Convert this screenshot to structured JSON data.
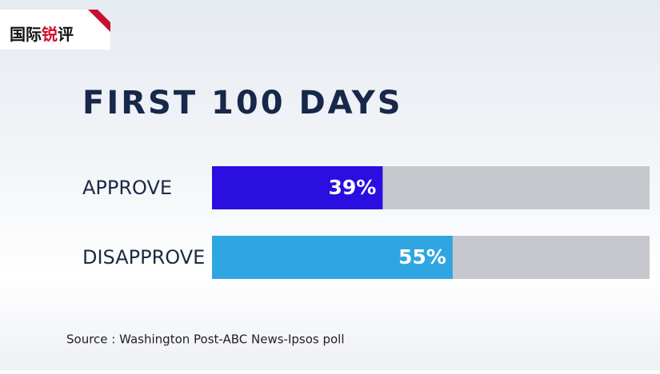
{
  "logo": [
    "国际",
    "锐",
    "评"
  ],
  "chart_data": {
    "type": "bar",
    "orientation": "horizontal",
    "title": "FIRST 100 DAYS",
    "categories": [
      "APPROVE",
      "DISAPPROVE"
    ],
    "values": [
      39,
      55
    ],
    "value_labels": [
      "39%",
      "55%"
    ],
    "colors": [
      "#2a0fe0",
      "#2fa6e2"
    ],
    "track_color": "#c6c8cd",
    "xlim": [
      0,
      100
    ],
    "source": "Source : Washington Post-ABC News-Ipsos poll"
  }
}
